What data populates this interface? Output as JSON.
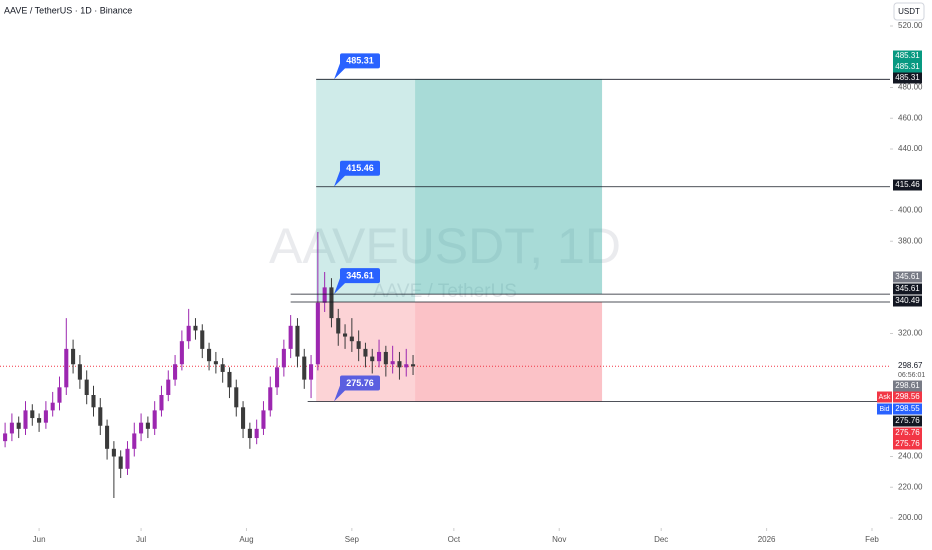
{
  "header": {
    "title": "AAVE / TetherUS · 1D · Binance",
    "currency": "USDT"
  },
  "chart_data": {
    "type": "candlestick",
    "watermark": "AAVEUSDT, 1D",
    "watermark_subtitle": "AAVE / TetherUS",
    "ylim": [
      200,
      520
    ],
    "yticks": [
      200,
      220,
      240,
      320,
      380,
      400,
      440,
      460,
      480,
      520
    ],
    "xlim": [
      -11.5,
      250.3
    ],
    "xticks": [
      {
        "value": 0,
        "label": "Jun"
      },
      {
        "value": 30,
        "label": "Jul"
      },
      {
        "value": 61,
        "label": "Aug"
      },
      {
        "value": 92,
        "label": "Sep"
      },
      {
        "value": 122,
        "label": "Oct"
      },
      {
        "value": 153,
        "label": "Nov"
      },
      {
        "value": 183,
        "label": "Dec"
      },
      {
        "value": 214,
        "label": "2026"
      },
      {
        "value": 245,
        "label": "Feb"
      }
    ],
    "up_color": "#9c27b0",
    "down_color": "#3a3a3a",
    "x": [
      -10,
      -8,
      -6,
      -4,
      -2,
      0,
      2,
      4,
      6,
      8,
      10,
      12,
      14,
      16,
      18,
      20,
      22,
      24,
      26,
      28,
      30,
      32,
      34,
      36,
      38,
      40,
      42,
      44,
      46,
      48,
      50,
      52,
      54,
      56,
      58,
      60,
      62,
      64,
      66,
      68,
      70,
      72,
      74,
      76,
      78,
      80,
      82,
      84,
      86,
      88,
      90,
      92,
      94,
      96,
      98,
      100,
      102,
      104,
      106,
      108,
      110
    ],
    "open": [
      250,
      255,
      262,
      258,
      270,
      265,
      262,
      270,
      275,
      285,
      310,
      300,
      290,
      280,
      272,
      260,
      245,
      240,
      232,
      245,
      255,
      262,
      258,
      270,
      280,
      290,
      300,
      315,
      325,
      322,
      310,
      302,
      300,
      295,
      285,
      272,
      258,
      252,
      258,
      270,
      285,
      298,
      310,
      325,
      305,
      290,
      300,
      340,
      350,
      330,
      320,
      318,
      315,
      310,
      305,
      302,
      308,
      300,
      302,
      298,
      300
    ],
    "high": [
      262,
      268,
      266,
      276,
      274,
      268,
      276,
      282,
      292,
      330,
      316,
      306,
      296,
      286,
      278,
      264,
      250,
      244,
      250,
      262,
      268,
      266,
      276,
      286,
      296,
      306,
      322,
      336,
      330,
      326,
      314,
      308,
      304,
      298,
      290,
      276,
      262,
      264,
      276,
      292,
      304,
      316,
      332,
      330,
      310,
      306,
      386,
      360,
      356,
      336,
      326,
      330,
      322,
      314,
      310,
      316,
      312,
      312,
      308,
      310,
      306
    ],
    "low": [
      246,
      250,
      252,
      254,
      260,
      256,
      258,
      266,
      270,
      280,
      294,
      284,
      274,
      266,
      254,
      238,
      213,
      226,
      228,
      240,
      250,
      252,
      254,
      266,
      276,
      286,
      296,
      310,
      316,
      304,
      296,
      294,
      288,
      278,
      266,
      252,
      245,
      248,
      254,
      266,
      280,
      292,
      304,
      298,
      284,
      278,
      296,
      334,
      324,
      312,
      310,
      308,
      302,
      298,
      294,
      298,
      292,
      294,
      290,
      292,
      293
    ],
    "close": [
      255,
      262,
      258,
      270,
      265,
      262,
      270,
      275,
      285,
      310,
      300,
      290,
      280,
      272,
      260,
      245,
      240,
      232,
      245,
      255,
      262,
      258,
      270,
      280,
      290,
      300,
      315,
      325,
      322,
      310,
      302,
      300,
      295,
      285,
      272,
      258,
      252,
      258,
      270,
      285,
      298,
      310,
      325,
      305,
      290,
      300,
      340,
      350,
      330,
      320,
      318,
      315,
      310,
      305,
      302,
      308,
      300,
      302,
      298,
      300,
      298.67
    ],
    "position": {
      "x_start": 81.5,
      "x_mid": 110.6,
      "x_end": 165.6,
      "profit_zone": [
        340.49,
        485.31
      ],
      "profit_inner": [
        345.61,
        485.31
      ],
      "profit_color": "#26a69a",
      "loss_zone": [
        275.76,
        340.49
      ],
      "loss_color": "#f23645"
    },
    "levels": [
      {
        "value": 485.31,
        "from": 81.5
      },
      {
        "value": 415.46,
        "from": 81.5
      },
      {
        "value": 345.61,
        "from": 74
      },
      {
        "value": 340.49,
        "from": 74
      },
      {
        "value": 275.76,
        "from": 79
      }
    ],
    "callouts": [
      {
        "value": 485.31,
        "color": "#2962ff"
      },
      {
        "value": 415.46,
        "color": "#2962ff"
      },
      {
        "value": 345.61,
        "color": "#2962ff"
      },
      {
        "value": 275.76,
        "color": "#5b5fe0"
      }
    ],
    "last_price": 298.67,
    "countdown": "06:56:01",
    "axis_badges": [
      {
        "value": 485.31,
        "color": "#089981"
      },
      {
        "value": 485.31,
        "color": "#089981"
      },
      {
        "value": 485.31,
        "color": "#131722"
      },
      {
        "value": 415.46,
        "color": "#131722"
      },
      {
        "value": 345.61,
        "color": "#787b86"
      },
      {
        "value": 345.61,
        "color": "#131722"
      },
      {
        "value": 340.49,
        "color": "#131722"
      },
      {
        "value": 298.61,
        "color": "#787b86"
      },
      {
        "prefix": "Ask",
        "value": 298.56,
        "color": "#f23645"
      },
      {
        "prefix": "Bid",
        "value": 298.55,
        "color": "#2962ff"
      },
      {
        "value": 275.76,
        "color": "#131722"
      },
      {
        "value": 275.76,
        "color": "#f23645"
      },
      {
        "value": 275.76,
        "color": "#f23645"
      }
    ]
  }
}
